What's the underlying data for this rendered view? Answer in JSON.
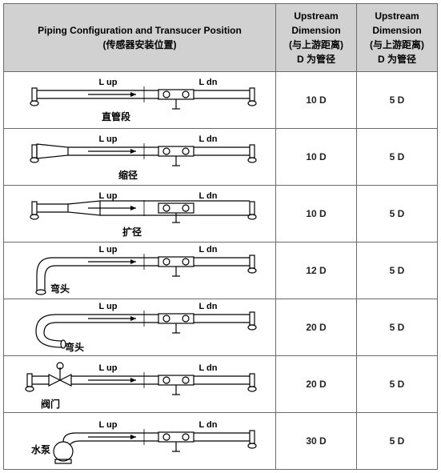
{
  "table": {
    "header": {
      "config_title_en": "Piping Configuration and Transucer Position",
      "config_title_zh": "(传感器安装位置)",
      "upstream_title": "Upstream",
      "upstream_sub": "Dimension",
      "upstream_zh": "(与上游距离)",
      "diameter_zh": "D 为管径"
    },
    "rows": [
      {
        "label_zh": "直管段",
        "upstream": "10 D",
        "downstream": "5 D",
        "type": "straight"
      },
      {
        "label_zh": "缩径",
        "upstream": "10 D",
        "downstream": "5 D",
        "type": "reducer"
      },
      {
        "label_zh": "扩径",
        "upstream": "10 D",
        "downstream": "5 D",
        "type": "expander"
      },
      {
        "label_zh": "弯头",
        "upstream": "12 D",
        "downstream": "5 D",
        "type": "elbow90"
      },
      {
        "label_zh": "弯头",
        "upstream": "20 D",
        "downstream": "5 D",
        "type": "elbow-u"
      },
      {
        "label_zh": "阀门",
        "upstream": "20 D",
        "downstream": "5 D",
        "type": "valve"
      },
      {
        "label_zh": "水泵",
        "upstream": "30 D",
        "downstream": "5 D",
        "type": "pump"
      }
    ],
    "diagram_labels": {
      "l_up": "L up",
      "l_dn": "L dn"
    },
    "style": {
      "header_bg": "#d1d1d1",
      "border_color": "#6b6b6b",
      "font_size_header": 12,
      "font_size_cell": 12,
      "stroke": "#000000",
      "stroke_width": 1.2,
      "label_font_size": 11,
      "zh_font_size": 12
    }
  }
}
